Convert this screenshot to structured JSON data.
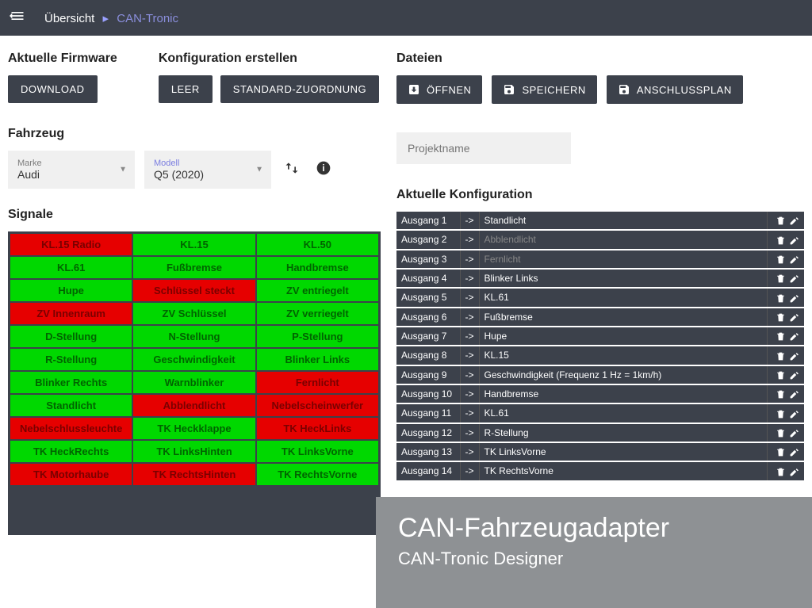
{
  "header": {
    "breadcrumb1": "Übersicht",
    "breadcrumb2": "CAN-Tronic"
  },
  "firmware": {
    "title": "Aktuelle Firmware",
    "download": "DOWNLOAD"
  },
  "config_create": {
    "title": "Konfiguration erstellen",
    "empty": "LEER",
    "standard": "STANDARD-ZUORDNUNG"
  },
  "files": {
    "title": "Dateien",
    "open": "ÖFFNEN",
    "save": "SPEICHERN",
    "plan": "ANSCHLUSSPLAN",
    "project_placeholder": "Projektname"
  },
  "vehicle": {
    "title": "Fahrzeug",
    "marke_label": "Marke",
    "marke_value": "Audi",
    "modell_label": "Modell",
    "modell_value": "Q5 (2020)"
  },
  "signals": {
    "title": "Signale",
    "colors": {
      "green": "#00d800",
      "red": "#e60000"
    },
    "cells": [
      {
        "label": "KL.15 Radio",
        "c": "red"
      },
      {
        "label": "KL.15",
        "c": "green"
      },
      {
        "label": "KL.50",
        "c": "green"
      },
      {
        "label": "KL.61",
        "c": "green"
      },
      {
        "label": "Fußbremse",
        "c": "green"
      },
      {
        "label": "Handbremse",
        "c": "green"
      },
      {
        "label": "Hupe",
        "c": "green"
      },
      {
        "label": "Schlüssel steckt",
        "c": "red"
      },
      {
        "label": "ZV entriegelt",
        "c": "green"
      },
      {
        "label": "ZV Innenraum",
        "c": "red"
      },
      {
        "label": "ZV Schlüssel",
        "c": "green"
      },
      {
        "label": "ZV verriegelt",
        "c": "green"
      },
      {
        "label": "D-Stellung",
        "c": "green"
      },
      {
        "label": "N-Stellung",
        "c": "green"
      },
      {
        "label": "P-Stellung",
        "c": "green"
      },
      {
        "label": "R-Stellung",
        "c": "green"
      },
      {
        "label": "Geschwindigkeit",
        "c": "green"
      },
      {
        "label": "Blinker Links",
        "c": "green"
      },
      {
        "label": "Blinker Rechts",
        "c": "green"
      },
      {
        "label": "Warnblinker",
        "c": "green"
      },
      {
        "label": "Fernlicht",
        "c": "red"
      },
      {
        "label": "Standlicht",
        "c": "green"
      },
      {
        "label": "Abblendlicht",
        "c": "red"
      },
      {
        "label": "Nebelscheinwerfer",
        "c": "red"
      },
      {
        "label": "Nebelschlussleuchte",
        "c": "red"
      },
      {
        "label": "TK Heckklappe",
        "c": "green"
      },
      {
        "label": "TK HeckLinks",
        "c": "red"
      },
      {
        "label": "TK HeckRechts",
        "c": "green"
      },
      {
        "label": "TK LinksHinten",
        "c": "green"
      },
      {
        "label": "TK LinksVorne",
        "c": "green"
      },
      {
        "label": "TK Motorhaube",
        "c": "red"
      },
      {
        "label": "TK RechtsHinten",
        "c": "red"
      },
      {
        "label": "TK RechtsVorne",
        "c": "green"
      }
    ]
  },
  "current_config": {
    "title": "Aktuelle Konfiguration",
    "rows": [
      {
        "out": "Ausgang 1",
        "target": "Standlicht",
        "faded": false
      },
      {
        "out": "Ausgang 2",
        "target": "Abblendlicht",
        "faded": true
      },
      {
        "out": "Ausgang 3",
        "target": "Fernlicht",
        "faded": true
      },
      {
        "out": "Ausgang 4",
        "target": "Blinker Links",
        "faded": false
      },
      {
        "out": "Ausgang 5",
        "target": "KL.61",
        "faded": false
      },
      {
        "out": "Ausgang 6",
        "target": "Fußbremse",
        "faded": false
      },
      {
        "out": "Ausgang 7",
        "target": "Hupe",
        "faded": false
      },
      {
        "out": "Ausgang 8",
        "target": "KL.15",
        "faded": false
      },
      {
        "out": "Ausgang 9",
        "target": "Geschwindigkeit (Frequenz 1 Hz = 1km/h)",
        "faded": false
      },
      {
        "out": "Ausgang 10",
        "target": "Handbremse",
        "faded": false
      },
      {
        "out": "Ausgang 11",
        "target": "KL.61",
        "faded": false
      },
      {
        "out": "Ausgang 12",
        "target": "R-Stellung",
        "faded": false
      },
      {
        "out": "Ausgang 13",
        "target": "TK LinksVorne",
        "faded": false
      },
      {
        "out": "Ausgang 14",
        "target": "TK RechtsVorne",
        "faded": false
      }
    ]
  },
  "banner": {
    "title": "CAN-Fahrzeugadapter",
    "subtitle": "CAN-Tronic Designer"
  }
}
